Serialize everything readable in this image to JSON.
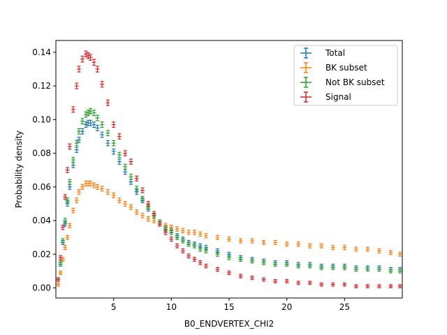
{
  "chart_data": {
    "type": "scatter",
    "title": "",
    "xlabel": "B0_ENDVERTEX_CHI2",
    "ylabel": "Probability density",
    "xlim": [
      0,
      30
    ],
    "ylim": [
      -0.006,
      0.147
    ],
    "xticks": [
      5,
      10,
      15,
      20,
      25
    ],
    "xtick_labels": [
      "5",
      "10",
      "15",
      "20",
      "25"
    ],
    "yticks": [
      0.0,
      0.02,
      0.04,
      0.06,
      0.08,
      0.1,
      0.12,
      0.14
    ],
    "ytick_labels": [
      "0.00",
      "0.02",
      "0.04",
      "0.06",
      "0.08",
      "0.10",
      "0.12",
      "0.14"
    ],
    "grid": false,
    "legend_position": "top-right",
    "error_bars": true,
    "series": [
      {
        "name": "Total",
        "color": "#1f77b4",
        "x": [
          0.2,
          0.4,
          0.6,
          0.8,
          1.0,
          1.2,
          1.5,
          1.8,
          2.0,
          2.3,
          2.6,
          2.8,
          3.0,
          3.3,
          3.6,
          4.0,
          4.5,
          5.0,
          5.5,
          6.0,
          6.5,
          7.0,
          7.5,
          8.0,
          8.5,
          9.0,
          9.5,
          10.0,
          10.5,
          11.0,
          11.5,
          12.0,
          12.5,
          13.0,
          14.0,
          15.0,
          16.0,
          17.0,
          18.0,
          19.0,
          20.0,
          21.0,
          22.0,
          23.0,
          24.0,
          25.0,
          26.0,
          27.0,
          28.0,
          29.0,
          29.8
        ],
        "y": [
          0.005,
          0.014,
          0.027,
          0.038,
          0.05,
          0.06,
          0.073,
          0.082,
          0.088,
          0.093,
          0.097,
          0.098,
          0.098,
          0.097,
          0.095,
          0.091,
          0.086,
          0.081,
          0.075,
          0.069,
          0.063,
          0.057,
          0.052,
          0.047,
          0.043,
          0.039,
          0.036,
          0.034,
          0.031,
          0.029,
          0.027,
          0.026,
          0.025,
          0.024,
          0.022,
          0.02,
          0.018,
          0.017,
          0.016,
          0.015,
          0.015,
          0.014,
          0.014,
          0.013,
          0.013,
          0.013,
          0.012,
          0.012,
          0.012,
          0.011,
          0.011
        ]
      },
      {
        "name": "BK subset",
        "color": "#ff7f0e",
        "x": [
          0.2,
          0.4,
          0.6,
          0.8,
          1.0,
          1.2,
          1.5,
          1.8,
          2.0,
          2.3,
          2.6,
          2.8,
          3.0,
          3.3,
          3.6,
          4.0,
          4.5,
          5.0,
          5.5,
          6.0,
          6.5,
          7.0,
          7.5,
          8.0,
          8.5,
          9.0,
          9.5,
          10.0,
          10.5,
          11.0,
          11.5,
          12.0,
          12.5,
          13.0,
          14.0,
          15.0,
          16.0,
          17.0,
          18.0,
          19.0,
          20.0,
          21.0,
          22.0,
          23.0,
          24.0,
          25.0,
          26.0,
          27.0,
          28.0,
          29.0,
          29.8
        ],
        "y": [
          0.002,
          0.009,
          0.017,
          0.024,
          0.03,
          0.037,
          0.046,
          0.052,
          0.057,
          0.06,
          0.062,
          0.062,
          0.062,
          0.061,
          0.06,
          0.059,
          0.057,
          0.055,
          0.052,
          0.05,
          0.048,
          0.045,
          0.043,
          0.041,
          0.04,
          0.038,
          0.037,
          0.036,
          0.035,
          0.034,
          0.033,
          0.033,
          0.032,
          0.031,
          0.03,
          0.029,
          0.028,
          0.028,
          0.027,
          0.027,
          0.026,
          0.026,
          0.025,
          0.025,
          0.024,
          0.024,
          0.023,
          0.023,
          0.022,
          0.021,
          0.02
        ]
      },
      {
        "name": "Not BK subset",
        "color": "#2ca02c",
        "x": [
          0.2,
          0.4,
          0.6,
          0.8,
          1.0,
          1.2,
          1.5,
          1.8,
          2.0,
          2.3,
          2.6,
          2.8,
          3.0,
          3.3,
          3.6,
          4.0,
          4.5,
          5.0,
          5.5,
          6.0,
          6.5,
          7.0,
          7.5,
          8.0,
          8.5,
          9.0,
          9.5,
          10.0,
          10.5,
          11.0,
          11.5,
          12.0,
          12.5,
          13.0,
          14.0,
          15.0,
          16.0,
          17.0,
          18.0,
          19.0,
          20.0,
          21.0,
          22.0,
          23.0,
          24.0,
          25.0,
          26.0,
          27.0,
          28.0,
          29.0,
          29.8
        ],
        "y": [
          0.005,
          0.015,
          0.028,
          0.04,
          0.052,
          0.063,
          0.076,
          0.086,
          0.093,
          0.099,
          0.103,
          0.104,
          0.105,
          0.104,
          0.101,
          0.097,
          0.092,
          0.086,
          0.079,
          0.072,
          0.066,
          0.059,
          0.053,
          0.048,
          0.043,
          0.039,
          0.035,
          0.033,
          0.03,
          0.028,
          0.026,
          0.025,
          0.023,
          0.022,
          0.02,
          0.018,
          0.017,
          0.016,
          0.015,
          0.014,
          0.014,
          0.013,
          0.013,
          0.012,
          0.012,
          0.012,
          0.011,
          0.011,
          0.011,
          0.01,
          0.01
        ]
      },
      {
        "name": "Signal",
        "color": "#d62728",
        "x": [
          0.2,
          0.4,
          0.6,
          0.8,
          1.0,
          1.2,
          1.5,
          1.8,
          2.0,
          2.3,
          2.6,
          2.8,
          3.0,
          3.3,
          3.6,
          4.0,
          4.5,
          5.0,
          5.5,
          6.0,
          6.5,
          7.0,
          7.5,
          8.0,
          8.5,
          9.0,
          9.5,
          10.0,
          10.5,
          11.0,
          11.5,
          12.0,
          12.5,
          13.0,
          14.0,
          15.0,
          16.0,
          17.0,
          18.0,
          19.0,
          20.0,
          21.0,
          22.0,
          23.0,
          24.0,
          25.0,
          26.0,
          27.0,
          28.0,
          29.0,
          29.8
        ],
        "y": [
          0.005,
          0.018,
          0.036,
          0.054,
          0.07,
          0.084,
          0.106,
          0.12,
          0.13,
          0.136,
          0.139,
          0.138,
          0.137,
          0.134,
          0.13,
          0.121,
          0.11,
          0.097,
          0.09,
          0.08,
          0.075,
          0.065,
          0.058,
          0.05,
          0.044,
          0.038,
          0.033,
          0.029,
          0.025,
          0.022,
          0.019,
          0.017,
          0.015,
          0.013,
          0.011,
          0.009,
          0.007,
          0.006,
          0.005,
          0.004,
          0.004,
          0.003,
          0.003,
          0.002,
          0.002,
          0.002,
          0.001,
          0.001,
          0.001,
          0.001,
          0.001
        ]
      }
    ]
  }
}
